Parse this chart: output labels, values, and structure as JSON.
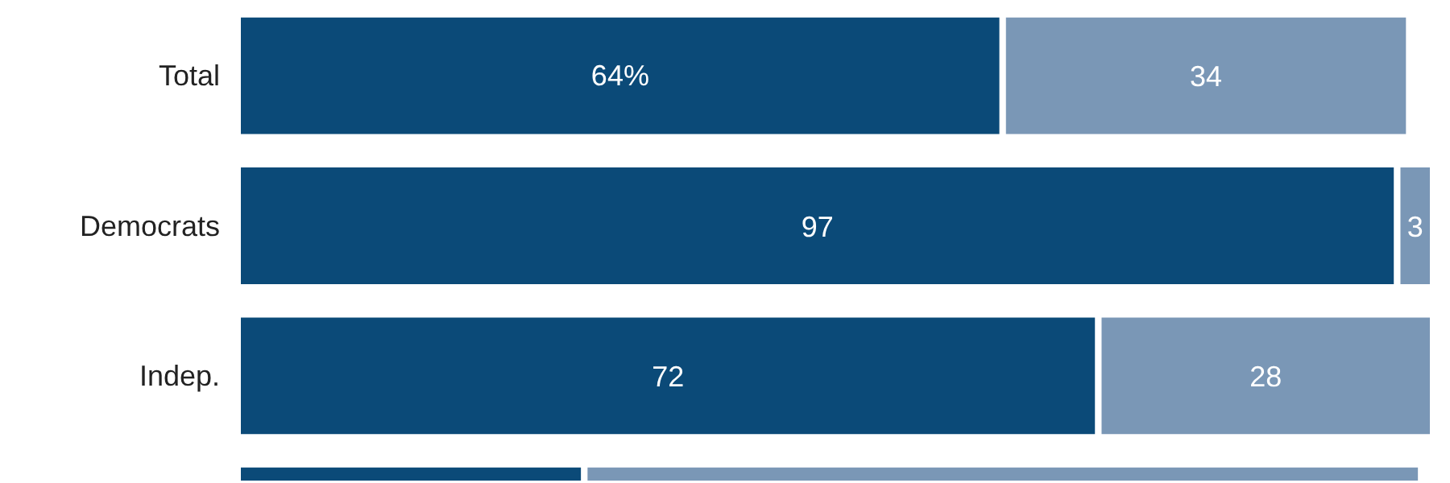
{
  "chart_data": {
    "type": "bar",
    "orientation": "horizontal",
    "stacked": true,
    "categories": [
      "Total",
      "Democrats",
      "Indep.",
      null
    ],
    "series": [
      {
        "color": "#0b4a78",
        "values": [
          64,
          97,
          72,
          29
        ],
        "value_labels": [
          "64%",
          "97",
          "72",
          null
        ]
      },
      {
        "color": "#7a97b6",
        "values": [
          34,
          3,
          28,
          70
        ],
        "value_labels": [
          "34",
          "3",
          "28",
          null
        ]
      }
    ],
    "xlim": [
      0,
      100
    ],
    "tick_labels": "y",
    "grid": false
  }
}
